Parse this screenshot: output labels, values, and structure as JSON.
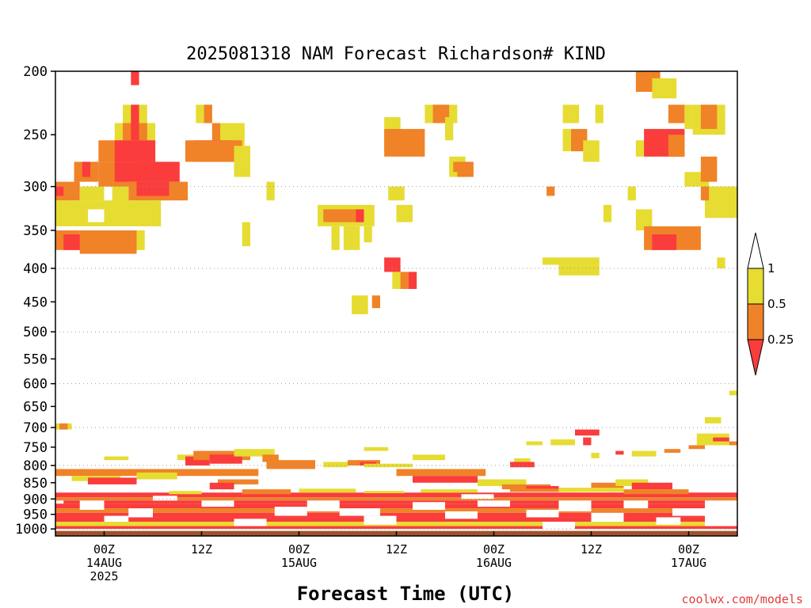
{
  "chart_data": {
    "type": "heatmap",
    "title": "2025081318 NAM Forecast Richardson# KIND",
    "xlabel": "Forecast Time (UTC)",
    "ylabel": "",
    "credit": "coolwx.com/models",
    "x_unit": "forecast hour from 2025-08-13 18Z",
    "x_range": [
      0,
      84
    ],
    "y_unit": "hPa",
    "y_range": [
      1025,
      200
    ],
    "y_scale": "log",
    "y_ticks": [
      {
        "v": 200,
        "label": "200"
      },
      {
        "v": 250,
        "label": "250"
      },
      {
        "v": 300,
        "label": "300"
      },
      {
        "v": 350,
        "label": "350"
      },
      {
        "v": 400,
        "label": "400"
      },
      {
        "v": 450,
        "label": "450"
      },
      {
        "v": 500,
        "label": "500"
      },
      {
        "v": 550,
        "label": "550"
      },
      {
        "v": 600,
        "label": "600"
      },
      {
        "v": 650,
        "label": "650"
      },
      {
        "v": 700,
        "label": "700"
      },
      {
        "v": 750,
        "label": "750"
      },
      {
        "v": 800,
        "label": "800"
      },
      {
        "v": 850,
        "label": "850"
      },
      {
        "v": 900,
        "label": "900"
      },
      {
        "v": 950,
        "label": "950"
      },
      {
        "v": 1000,
        "label": "1000"
      }
    ],
    "grid_levels": [
      300,
      400,
      500,
      600,
      700,
      800,
      900,
      1000
    ],
    "x_ticks": [
      {
        "h": 6,
        "lines": [
          "00Z",
          "14AUG",
          "2025"
        ]
      },
      {
        "h": 18,
        "lines": [
          "12Z"
        ]
      },
      {
        "h": 30,
        "lines": [
          "00Z",
          "15AUG"
        ]
      },
      {
        "h": 42,
        "lines": [
          "12Z"
        ]
      },
      {
        "h": 54,
        "lines": [
          "00Z",
          "16AUG"
        ]
      },
      {
        "h": 66,
        "lines": [
          "12Z"
        ]
      },
      {
        "h": 78,
        "lines": [
          "00Z",
          "17AUG"
        ]
      }
    ],
    "colorbar": {
      "levels": [
        "1",
        "0.5",
        "0.25"
      ],
      "colors": {
        "white": "#ffffff",
        "yellow": "#e6dc32",
        "orange": "#f08228",
        "red": "#fa3c3c"
      },
      "bins": [
        "<0.25 red",
        "0.25-0.5 orange",
        "0.5-1 yellow",
        ">1 white"
      ]
    },
    "ground": {
      "from_hpa": 1007,
      "color": "#a0522d"
    },
    "cells_note": "Ri category cells: [hour_start, hour_end, p_top_hPa, p_bottom_hPa, category] where category 1=0.5-1 (yellow), 2=0.25-0.5 (orange), 3=<0.25 (red)",
    "cells": [
      [
        9.3,
        10.3,
        200,
        210,
        3
      ],
      [
        8.3,
        11.3,
        225,
        240,
        1
      ],
      [
        9.3,
        10.3,
        225,
        240,
        3
      ],
      [
        7.3,
        12.3,
        240,
        255,
        1
      ],
      [
        8.3,
        11.3,
        240,
        255,
        2
      ],
      [
        9.3,
        10.3,
        240,
        255,
        3
      ],
      [
        5.3,
        12.3,
        255,
        275,
        2
      ],
      [
        7.3,
        12.3,
        255,
        275,
        3
      ],
      [
        2.3,
        5.3,
        275,
        295,
        2
      ],
      [
        3.3,
        4.3,
        275,
        290,
        3
      ],
      [
        5.3,
        9.3,
        275,
        300,
        2
      ],
      [
        7.3,
        15.3,
        275,
        295,
        3
      ],
      [
        0,
        3,
        295,
        315,
        2
      ],
      [
        0,
        1,
        300,
        310,
        3
      ],
      [
        3,
        6,
        300,
        315,
        1
      ],
      [
        9,
        16.3,
        295,
        315,
        2
      ],
      [
        10,
        14,
        295,
        310,
        3
      ],
      [
        7,
        9,
        300,
        320,
        1
      ],
      [
        0,
        13,
        315,
        345,
        1
      ],
      [
        4,
        6,
        325,
        340,
        0
      ],
      [
        0,
        3,
        350,
        375,
        2
      ],
      [
        1,
        4,
        355,
        375,
        3
      ],
      [
        3,
        10,
        350,
        380,
        2
      ],
      [
        10,
        11,
        350,
        375,
        1
      ],
      [
        17.3,
        19.3,
        225,
        240,
        1
      ],
      [
        18.3,
        19.3,
        225,
        240,
        2
      ],
      [
        19.3,
        21.3,
        240,
        260,
        2
      ],
      [
        20.3,
        23.3,
        240,
        260,
        1
      ],
      [
        21.3,
        22.3,
        255,
        275,
        1
      ],
      [
        17,
        22,
        255,
        275,
        3
      ],
      [
        16,
        23,
        255,
        275,
        2
      ],
      [
        22,
        24,
        260,
        290,
        1
      ],
      [
        26,
        27,
        295,
        315,
        1
      ],
      [
        23,
        24,
        340,
        370,
        1
      ],
      [
        32.3,
        39.3,
        320,
        345,
        1
      ],
      [
        33,
        37,
        325,
        340,
        2
      ],
      [
        37,
        38,
        325,
        340,
        3
      ],
      [
        34,
        35,
        345,
        375,
        1
      ],
      [
        35.5,
        37.5,
        345,
        375,
        1
      ],
      [
        38,
        39,
        345,
        365,
        1
      ],
      [
        40.5,
        42.5,
        235,
        265,
        1
      ],
      [
        40.5,
        45.5,
        245,
        270,
        2
      ],
      [
        45.5,
        49.5,
        225,
        240,
        1
      ],
      [
        46.5,
        48.5,
        225,
        240,
        2
      ],
      [
        48,
        49,
        235,
        255,
        1
      ],
      [
        48.5,
        50.5,
        270,
        290,
        1
      ],
      [
        49,
        50,
        275,
        285,
        2
      ],
      [
        49.5,
        51.5,
        275,
        290,
        2
      ],
      [
        41,
        43,
        300,
        315,
        1
      ],
      [
        42,
        44,
        320,
        340,
        1
      ],
      [
        40.5,
        42.5,
        385,
        405,
        3
      ],
      [
        41.5,
        44.5,
        405,
        430,
        1
      ],
      [
        42.5,
        43.5,
        405,
        430,
        2
      ],
      [
        43.5,
        44.5,
        405,
        430,
        3
      ],
      [
        36.5,
        38.5,
        440,
        470,
        1
      ],
      [
        39,
        40,
        440,
        460,
        2
      ],
      [
        60.5,
        61.5,
        300,
        310,
        2
      ],
      [
        60,
        67,
        385,
        395,
        1
      ],
      [
        62,
        67,
        395,
        410,
        1
      ],
      [
        62.5,
        64.5,
        225,
        240,
        1
      ],
      [
        63.5,
        65.5,
        245,
        265,
        2
      ],
      [
        62.5,
        63.5,
        245,
        265,
        1
      ],
      [
        65,
        67,
        255,
        275,
        1
      ],
      [
        66.5,
        67.5,
        225,
        240,
        1
      ],
      [
        71.5,
        74.5,
        200,
        215,
        2
      ],
      [
        72.5,
        73.5,
        200,
        210,
        2
      ],
      [
        73.5,
        76.5,
        205,
        220,
        1
      ],
      [
        75.5,
        77.5,
        225,
        240,
        2
      ],
      [
        77.5,
        78.5,
        225,
        245,
        1
      ],
      [
        71.5,
        73.5,
        255,
        270,
        1
      ],
      [
        72.5,
        77.5,
        245,
        270,
        3
      ],
      [
        75.5,
        77.5,
        250,
        270,
        2
      ],
      [
        78.5,
        82.5,
        225,
        250,
        1
      ],
      [
        79.5,
        81.5,
        225,
        245,
        2
      ],
      [
        77.5,
        80.5,
        285,
        300,
        1
      ],
      [
        79.5,
        81.5,
        270,
        295,
        2
      ],
      [
        80,
        84,
        300,
        335,
        1
      ],
      [
        79.5,
        80.5,
        300,
        315,
        2
      ],
      [
        71.5,
        73.5,
        325,
        350,
        1
      ],
      [
        72.5,
        79.5,
        345,
        375,
        2
      ],
      [
        73.5,
        76.5,
        355,
        375,
        3
      ],
      [
        70.5,
        71.5,
        300,
        315,
        1
      ],
      [
        67.5,
        68.5,
        320,
        340,
        1
      ],
      [
        81.5,
        82.5,
        385,
        400,
        1
      ],
      [
        83,
        84,
        615,
        625,
        1
      ],
      [
        0,
        2,
        690,
        705,
        1
      ],
      [
        0.5,
        1.5,
        690,
        705,
        2
      ],
      [
        6,
        9,
        775,
        785,
        1
      ],
      [
        15,
        17,
        770,
        785,
        1
      ],
      [
        16,
        19,
        775,
        800,
        3
      ],
      [
        17,
        24,
        760,
        785,
        2
      ],
      [
        19,
        23,
        770,
        795,
        3
      ],
      [
        22,
        24,
        755,
        775,
        1
      ],
      [
        24,
        27,
        755,
        775,
        1
      ],
      [
        25.5,
        27.5,
        770,
        790,
        2
      ],
      [
        27,
        32,
        790,
        800,
        3
      ],
      [
        26,
        32,
        785,
        810,
        2
      ],
      [
        33,
        36,
        790,
        805,
        1
      ],
      [
        36,
        40,
        785,
        800,
        2
      ],
      [
        37.5,
        39.5,
        790,
        800,
        3
      ],
      [
        38,
        41,
        750,
        760,
        1
      ],
      [
        38,
        44,
        795,
        805,
        1
      ],
      [
        44,
        48,
        770,
        785,
        1
      ],
      [
        56.5,
        58.5,
        780,
        795,
        1
      ],
      [
        56,
        59,
        790,
        805,
        3
      ],
      [
        58,
        60,
        735,
        745,
        1
      ],
      [
        61,
        64,
        730,
        745,
        1
      ],
      [
        64,
        67,
        705,
        720,
        3
      ],
      [
        65,
        66,
        725,
        745,
        3
      ],
      [
        66,
        67,
        765,
        780,
        1
      ],
      [
        71,
        74,
        760,
        775,
        1
      ],
      [
        75,
        77,
        755,
        765,
        2
      ],
      [
        78,
        80,
        745,
        755,
        2
      ],
      [
        79,
        83,
        715,
        745,
        1
      ],
      [
        81,
        83,
        725,
        735,
        3
      ],
      [
        83,
        84,
        735,
        745,
        2
      ],
      [
        80,
        82,
        675,
        690,
        1
      ],
      [
        69,
        70,
        760,
        770,
        3
      ],
      [
        0,
        25,
        810,
        830,
        2
      ],
      [
        2,
        8,
        830,
        845,
        1
      ],
      [
        4,
        10,
        835,
        855,
        3
      ],
      [
        10,
        15,
        820,
        840,
        1
      ],
      [
        20,
        25,
        840,
        855,
        2
      ],
      [
        19,
        22,
        850,
        870,
        3
      ],
      [
        42,
        53,
        810,
        830,
        2
      ],
      [
        44,
        52,
        830,
        850,
        3
      ],
      [
        52,
        58,
        840,
        860,
        1
      ],
      [
        55,
        61,
        855,
        870,
        2
      ],
      [
        58,
        62,
        860,
        875,
        3
      ],
      [
        66,
        70,
        850,
        870,
        2
      ],
      [
        69,
        73,
        840,
        860,
        1
      ],
      [
        71,
        76,
        850,
        870,
        3
      ],
      [
        0,
        84,
        880,
        895,
        3
      ],
      [
        0,
        84,
        895,
        905,
        2
      ],
      [
        1,
        84,
        905,
        915,
        3
      ],
      [
        0,
        84,
        915,
        930,
        3
      ],
      [
        0,
        84,
        930,
        945,
        2
      ],
      [
        0,
        84,
        945,
        960,
        3
      ],
      [
        0,
        84,
        960,
        975,
        3
      ],
      [
        0,
        84,
        975,
        990,
        1
      ],
      [
        0,
        84,
        990,
        1000,
        3
      ],
      [
        14,
        18,
        875,
        885,
        1
      ],
      [
        23,
        29,
        870,
        885,
        2
      ],
      [
        30,
        37,
        868,
        880,
        1
      ],
      [
        45,
        52,
        870,
        880,
        1
      ],
      [
        56,
        64,
        868,
        878,
        2
      ],
      [
        70,
        78,
        870,
        885,
        2
      ],
      [
        62,
        70,
        865,
        878,
        1
      ],
      [
        38,
        43,
        875,
        882,
        1
      ]
    ],
    "white_gaps": [
      [
        3,
        6,
        905,
        935
      ],
      [
        9,
        12,
        930,
        960
      ],
      [
        18,
        22,
        905,
        925
      ],
      [
        27,
        31,
        925,
        955
      ],
      [
        31,
        35,
        905,
        940
      ],
      [
        35,
        40,
        930,
        955
      ],
      [
        44,
        48,
        910,
        935
      ],
      [
        48,
        52,
        940,
        965
      ],
      [
        52,
        56,
        905,
        925
      ],
      [
        58,
        62,
        935,
        960
      ],
      [
        62,
        66,
        905,
        940
      ],
      [
        66,
        70,
        945,
        975
      ],
      [
        70,
        73,
        905,
        930
      ],
      [
        76,
        80,
        930,
        955
      ],
      [
        80,
        84,
        905,
        990
      ],
      [
        6,
        9,
        955,
        975
      ],
      [
        38,
        42,
        955,
        985
      ],
      [
        22,
        26,
        965,
        990
      ],
      [
        60,
        64,
        975,
        1000
      ],
      [
        12,
        15,
        890,
        905
      ],
      [
        50,
        54,
        885,
        900
      ],
      [
        74,
        77,
        960,
        985
      ]
    ]
  }
}
